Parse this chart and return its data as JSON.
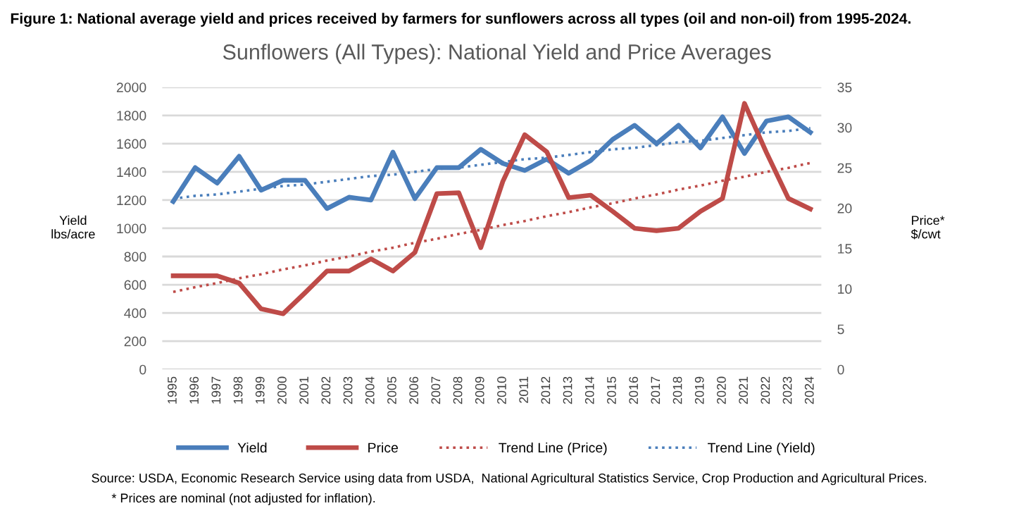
{
  "chart_data": {
    "type": "line",
    "title": "Figure 1: National average yield and prices received by farmers for sunflowers across all types (oil and non-oil) from 1995-2024.",
    "subtitle": "Sunflowers (All Types): National Yield and Price Averages",
    "ylabel": "Yield\nlbs/acre",
    "y2label": "Price*\n$/cwt",
    "categories": [
      "1995",
      "1996",
      "1997",
      "1998",
      "1999",
      "2000",
      "2001",
      "2002",
      "2003",
      "2004",
      "2005",
      "2006",
      "2007",
      "2008",
      "2009",
      "2010",
      "2011",
      "2012",
      "2013",
      "2014",
      "2015",
      "2016",
      "2017",
      "2018",
      "2019",
      "2020",
      "2021",
      "2022",
      "2023",
      "2024"
    ],
    "series": [
      {
        "name": "Yield",
        "color": "#4a7ebb",
        "line_style": "solid",
        "values": [
          1190,
          1430,
          1320,
          1510,
          1270,
          1340,
          1340,
          1140,
          1220,
          1200,
          1540,
          1210,
          1430,
          1430,
          1560,
          1460,
          1410,
          1490,
          1390,
          1480,
          1630,
          1730,
          1600,
          1730,
          1570,
          1790,
          1530,
          1760,
          1790,
          1680
        ]
      },
      {
        "name": "Price",
        "color": "#be4b48",
        "line_style": "solid",
        "axis": "y2",
        "values": [
          11.6,
          11.6,
          11.6,
          10.7,
          7.5,
          6.9,
          9.5,
          12.2,
          12.2,
          13.7,
          12.2,
          14.5,
          21.8,
          21.9,
          15.1,
          23.3,
          29.1,
          27,
          21.3,
          21.6,
          19.6,
          17.5,
          17.2,
          17.5,
          19.6,
          21.2,
          33,
          26.9,
          21.2,
          19.9
        ]
      },
      {
        "name": "Trend Line (Price)",
        "color": "#be4b48",
        "line_style": "dotted",
        "axis": "y2",
        "values": [
          9.6,
          10.2,
          10.7,
          11.3,
          11.8,
          12.4,
          12.9,
          13.5,
          14.0,
          14.6,
          15.1,
          15.7,
          16.2,
          16.8,
          17.3,
          17.9,
          18.4,
          19.0,
          19.5,
          20.1,
          20.6,
          21.2,
          21.7,
          22.3,
          22.8,
          23.4,
          23.9,
          24.5,
          25.0,
          25.6
        ]
      },
      {
        "name": "Trend Line (Yield)",
        "color": "#4a7ebb",
        "line_style": "dotted",
        "values": [
          1210,
          1230,
          1240,
          1260,
          1280,
          1300,
          1310,
          1330,
          1350,
          1370,
          1380,
          1400,
          1420,
          1430,
          1450,
          1470,
          1490,
          1500,
          1520,
          1540,
          1560,
          1570,
          1590,
          1610,
          1620,
          1640,
          1660,
          1680,
          1690,
          1710
        ]
      }
    ],
    "ylim": [
      0,
      2000
    ],
    "yticks": [
      0,
      200,
      400,
      600,
      800,
      1000,
      1200,
      1400,
      1600,
      1800,
      2000
    ],
    "y2lim": [
      0,
      35
    ],
    "y2ticks": [
      0,
      5,
      10,
      15,
      20,
      25,
      30,
      35
    ],
    "grid": "y",
    "legend": "bottom",
    "marker": "none",
    "annotations": [
      "Source: USDA, Economic Research Service using data from USDA,  National Agricultural Statistics Service, Crop Production and Agricultural Prices.",
      "* Prices are nominal (not adjusted for inflation)."
    ]
  }
}
